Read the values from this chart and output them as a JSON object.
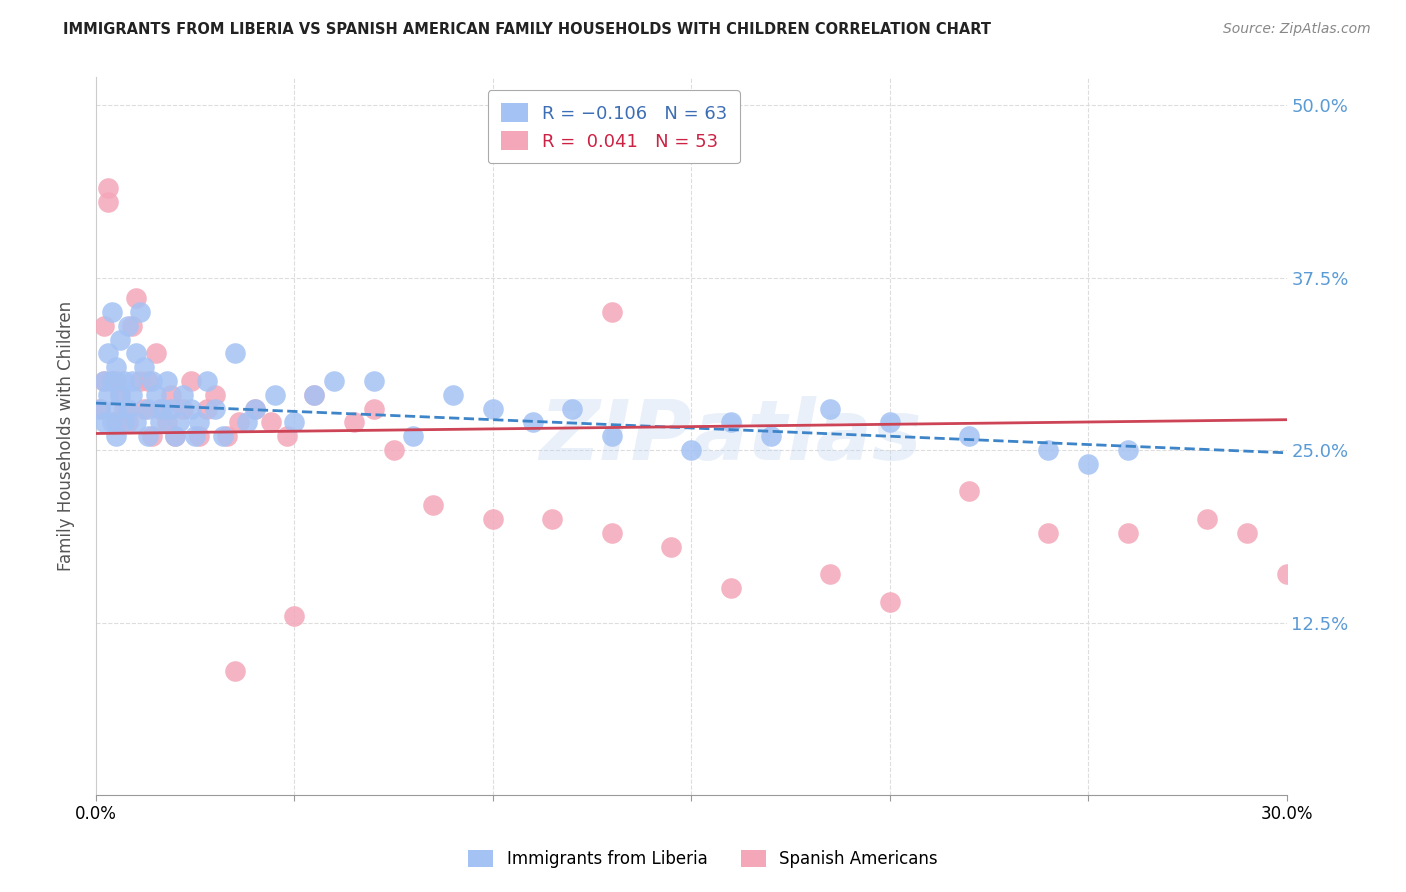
{
  "title": "IMMIGRANTS FROM LIBERIA VS SPANISH AMERICAN FAMILY HOUSEHOLDS WITH CHILDREN CORRELATION CHART",
  "source": "Source: ZipAtlas.com",
  "ylabel": "Family Households with Children",
  "ytick_values": [
    0.0,
    0.125,
    0.25,
    0.375,
    0.5
  ],
  "xlim": [
    0.0,
    0.3
  ],
  "ylim": [
    0.0,
    0.52
  ],
  "blue_color": "#a4c2f4",
  "pink_color": "#f4a7b9",
  "blue_line_color": "#3d85c8",
  "pink_line_color": "#cc4455",
  "watermark_color": "#c9daf8",
  "blue_scatter_x": [
    0.001,
    0.002,
    0.002,
    0.003,
    0.003,
    0.004,
    0.004,
    0.004,
    0.005,
    0.005,
    0.005,
    0.006,
    0.006,
    0.007,
    0.007,
    0.008,
    0.008,
    0.009,
    0.009,
    0.01,
    0.01,
    0.011,
    0.012,
    0.013,
    0.013,
    0.014,
    0.015,
    0.016,
    0.017,
    0.018,
    0.019,
    0.02,
    0.021,
    0.022,
    0.024,
    0.025,
    0.026,
    0.028,
    0.03,
    0.032,
    0.035,
    0.038,
    0.04,
    0.045,
    0.05,
    0.055,
    0.06,
    0.07,
    0.08,
    0.09,
    0.1,
    0.11,
    0.12,
    0.13,
    0.15,
    0.16,
    0.17,
    0.185,
    0.2,
    0.22,
    0.24,
    0.25,
    0.26
  ],
  "blue_scatter_y": [
    0.28,
    0.3,
    0.27,
    0.32,
    0.29,
    0.3,
    0.35,
    0.27,
    0.28,
    0.31,
    0.26,
    0.29,
    0.33,
    0.3,
    0.27,
    0.34,
    0.28,
    0.29,
    0.3,
    0.32,
    0.27,
    0.35,
    0.31,
    0.28,
    0.26,
    0.3,
    0.29,
    0.27,
    0.28,
    0.3,
    0.28,
    0.26,
    0.27,
    0.29,
    0.28,
    0.26,
    0.27,
    0.3,
    0.28,
    0.26,
    0.32,
    0.27,
    0.28,
    0.29,
    0.27,
    0.29,
    0.3,
    0.3,
    0.26,
    0.29,
    0.28,
    0.27,
    0.28,
    0.26,
    0.25,
    0.27,
    0.26,
    0.28,
    0.27,
    0.26,
    0.25,
    0.24,
    0.25
  ],
  "pink_scatter_x": [
    0.001,
    0.002,
    0.002,
    0.003,
    0.003,
    0.004,
    0.005,
    0.005,
    0.006,
    0.007,
    0.008,
    0.009,
    0.01,
    0.011,
    0.012,
    0.013,
    0.014,
    0.015,
    0.016,
    0.018,
    0.019,
    0.02,
    0.022,
    0.024,
    0.026,
    0.028,
    0.03,
    0.033,
    0.036,
    0.04,
    0.044,
    0.048,
    0.055,
    0.065,
    0.075,
    0.085,
    0.1,
    0.115,
    0.13,
    0.145,
    0.16,
    0.185,
    0.2,
    0.22,
    0.24,
    0.26,
    0.28,
    0.29,
    0.3,
    0.13,
    0.07,
    0.05,
    0.035
  ],
  "pink_scatter_y": [
    0.28,
    0.34,
    0.3,
    0.43,
    0.44,
    0.3,
    0.27,
    0.3,
    0.29,
    0.28,
    0.27,
    0.34,
    0.36,
    0.3,
    0.28,
    0.3,
    0.26,
    0.32,
    0.28,
    0.27,
    0.29,
    0.26,
    0.28,
    0.3,
    0.26,
    0.28,
    0.29,
    0.26,
    0.27,
    0.28,
    0.27,
    0.26,
    0.29,
    0.27,
    0.25,
    0.21,
    0.2,
    0.2,
    0.19,
    0.18,
    0.15,
    0.16,
    0.14,
    0.22,
    0.19,
    0.19,
    0.2,
    0.19,
    0.16,
    0.35,
    0.28,
    0.13,
    0.09
  ],
  "blue_trend_y_start": 0.284,
  "blue_trend_y_end": 0.248,
  "pink_trend_y_start": 0.262,
  "pink_trend_y_end": 0.272
}
